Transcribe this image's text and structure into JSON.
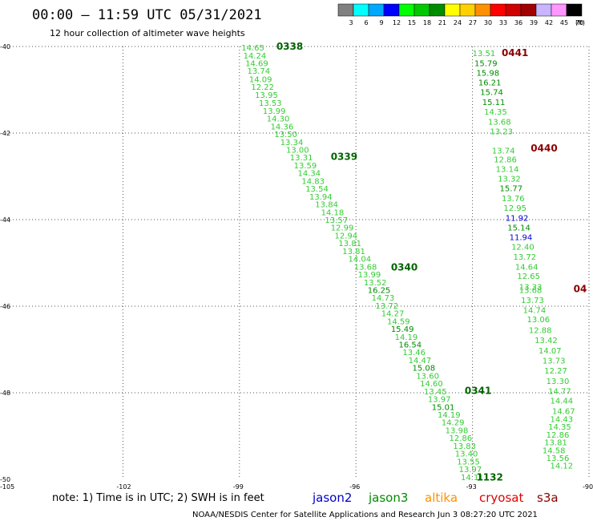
{
  "header": {
    "title": "00:00 – 11:59 UTC 05/31/2021",
    "subtitle": "12 hour collection of altimeter wave heights"
  },
  "legend": {
    "bins": [
      {
        "label": "3",
        "color": "#808080"
      },
      {
        "label": "6",
        "color": "#00ffff"
      },
      {
        "label": "9",
        "color": "#00a8ff"
      },
      {
        "label": "12",
        "color": "#0000ff"
      },
      {
        "label": "15",
        "color": "#00ff00"
      },
      {
        "label": "18",
        "color": "#00c800"
      },
      {
        "label": "21",
        "color": "#008c00"
      },
      {
        "label": "24",
        "color": "#ffff00"
      },
      {
        "label": "27",
        "color": "#ffd000"
      },
      {
        "label": "30",
        "color": "#ff9000"
      },
      {
        "label": "33",
        "color": "#ff0000"
      },
      {
        "label": "36",
        "color": "#d00000"
      },
      {
        "label": "39",
        "color": "#a00000"
      },
      {
        "label": "42",
        "color": "#c8b4ff"
      },
      {
        "label": "45",
        "color": "#ff96ff"
      },
      {
        "label": "70",
        "color": "#000000"
      }
    ],
    "unit": "(ft)"
  },
  "footer": {
    "note": "note: 1) Time is in UTC; 2) SWH is in feet",
    "satellites": [
      {
        "name": "jason2",
        "color": "#0000cc"
      },
      {
        "name": "jason3",
        "color": "#008c00"
      },
      {
        "name": "altika",
        "color": "#ff9000"
      },
      {
        "name": "cryosat",
        "color": "#e00000"
      },
      {
        "name": "s3a",
        "color": "#8b0000"
      }
    ],
    "credit": "NOAA/NESDIS Center for Satellite Applications and Research    Jun  3 08:27:20 UTC 2021"
  },
  "chart_data": {
    "type": "scatter",
    "xlim": [
      -105,
      -90
    ],
    "ylim": [
      -50,
      -40
    ],
    "x_ticks": [
      -105,
      -102,
      -99,
      -96,
      -93,
      -90
    ],
    "y_ticks": [
      -40,
      -42,
      -44,
      -46,
      -48,
      -50
    ],
    "grid": true,
    "tracks": [
      {
        "color": "#00c800",
        "points": [
          {
            "lon": -98.95,
            "lat": -40.02,
            "v": "14.65"
          },
          {
            "lon": -98.9,
            "lat": -40.2,
            "v": "14.24"
          },
          {
            "lon": -98.85,
            "lat": -40.38,
            "v": "14.69"
          },
          {
            "lon": -98.8,
            "lat": -40.56,
            "v": "13.74"
          },
          {
            "lon": -98.75,
            "lat": -40.75,
            "v": "14.09"
          },
          {
            "lon": -98.7,
            "lat": -40.93,
            "v": "12.22"
          },
          {
            "lon": -98.6,
            "lat": -41.11,
            "v": "13.95"
          },
          {
            "lon": -98.5,
            "lat": -41.3,
            "v": "13.53"
          },
          {
            "lon": -98.4,
            "lat": -41.48,
            "v": "13.99"
          },
          {
            "lon": -98.3,
            "lat": -41.66,
            "v": "14.30"
          },
          {
            "lon": -98.2,
            "lat": -41.84,
            "v": "14.36"
          },
          {
            "lon": -98.1,
            "lat": -42.02,
            "v": "13.50"
          },
          {
            "lon": -97.95,
            "lat": -42.2,
            "v": "13.34"
          },
          {
            "lon": -97.8,
            "lat": -42.38,
            "v": "13.00"
          },
          {
            "lon": -97.7,
            "lat": -42.56,
            "v": "13.31"
          },
          {
            "lon": -97.6,
            "lat": -42.74,
            "v": "13.59"
          },
          {
            "lon": -97.5,
            "lat": -42.92,
            "v": "14.34"
          },
          {
            "lon": -97.4,
            "lat": -43.1,
            "v": "14.83"
          },
          {
            "lon": -97.3,
            "lat": -43.28,
            "v": "13.54"
          },
          {
            "lon": -97.2,
            "lat": -43.46,
            "v": "13.94"
          },
          {
            "lon": -97.05,
            "lat": -43.64,
            "v": "13.84"
          },
          {
            "lon": -96.9,
            "lat": -43.82,
            "v": "14.18"
          },
          {
            "lon": -96.8,
            "lat": -44.0,
            "v": "13.57"
          },
          {
            "lon": -96.65,
            "lat": -44.18,
            "v": "12.99"
          },
          {
            "lon": -96.55,
            "lat": -44.36,
            "v": "12.94"
          },
          {
            "lon": -96.45,
            "lat": -44.54,
            "v": "13.81"
          },
          {
            "lon": -96.35,
            "lat": -44.72,
            "v": "13.81"
          },
          {
            "lon": -96.2,
            "lat": -44.9,
            "v": "14.04"
          },
          {
            "lon": -96.05,
            "lat": -45.08,
            "v": "13.68"
          },
          {
            "lon": -95.95,
            "lat": -45.26,
            "v": "13.99"
          },
          {
            "lon": -95.8,
            "lat": -45.44,
            "v": "13.52"
          },
          {
            "lon": -95.7,
            "lat": -45.62,
            "v": "16.25"
          },
          {
            "lon": -95.6,
            "lat": -45.8,
            "v": "14.73"
          },
          {
            "lon": -95.5,
            "lat": -45.98,
            "v": "13.72"
          },
          {
            "lon": -95.35,
            "lat": -46.16,
            "v": "14.27"
          },
          {
            "lon": -95.2,
            "lat": -46.34,
            "v": "14.59"
          },
          {
            "lon": -95.1,
            "lat": -46.52,
            "v": "15.49"
          },
          {
            "lon": -95.0,
            "lat": -46.7,
            "v": "14.19"
          },
          {
            "lon": -94.9,
            "lat": -46.88,
            "v": "16.54"
          },
          {
            "lon": -94.8,
            "lat": -47.06,
            "v": "13.46"
          },
          {
            "lon": -94.65,
            "lat": -47.24,
            "v": "14.47"
          },
          {
            "lon": -94.55,
            "lat": -47.42,
            "v": "15.08"
          },
          {
            "lon": -94.45,
            "lat": -47.6,
            "v": "13.60"
          },
          {
            "lon": -94.35,
            "lat": -47.78,
            "v": "14.60"
          },
          {
            "lon": -94.25,
            "lat": -47.96,
            "v": "13.45"
          },
          {
            "lon": -94.15,
            "lat": -48.14,
            "v": "13.97"
          },
          {
            "lon": -94.05,
            "lat": -48.32,
            "v": "15.01"
          },
          {
            "lon": -93.9,
            "lat": -48.5,
            "v": "14.19"
          },
          {
            "lon": -93.8,
            "lat": -48.68,
            "v": "14.29"
          },
          {
            "lon": -93.7,
            "lat": -48.86,
            "v": "13.98"
          },
          {
            "lon": -93.6,
            "lat": -49.04,
            "v": "12.86"
          },
          {
            "lon": -93.5,
            "lat": -49.22,
            "v": "13.83"
          },
          {
            "lon": -93.45,
            "lat": -49.4,
            "v": "13.40"
          },
          {
            "lon": -93.4,
            "lat": -49.58,
            "v": "13.55"
          },
          {
            "lon": -93.35,
            "lat": -49.76,
            "v": "13.97"
          },
          {
            "lon": -93.3,
            "lat": -49.94,
            "v": "14.11"
          }
        ],
        "time_labels": [
          {
            "lon": -98.05,
            "lat": -40.0,
            "t": "0338"
          },
          {
            "lon": -96.65,
            "lat": -42.55,
            "t": "0339"
          },
          {
            "lon": -95.1,
            "lat": -45.1,
            "t": "0340"
          },
          {
            "lon": -93.2,
            "lat": -47.95,
            "t": "0341"
          },
          {
            "lon": -92.9,
            "lat": -49.95,
            "t": "1132"
          }
        ]
      },
      {
        "color": "#00c800",
        "points": [
          {
            "lon": -93.0,
            "lat": -40.15,
            "v": "13.51"
          },
          {
            "lon": -92.95,
            "lat": -40.38,
            "v": "15.79"
          },
          {
            "lon": -92.9,
            "lat": -40.6,
            "v": "15.98"
          },
          {
            "lon": -92.85,
            "lat": -40.82,
            "v": "16.21"
          },
          {
            "lon": -92.8,
            "lat": -41.05,
            "v": "15.74"
          },
          {
            "lon": -92.75,
            "lat": -41.28,
            "v": "15.11"
          },
          {
            "lon": -92.7,
            "lat": -41.5,
            "v": "14.35"
          },
          {
            "lon": -92.6,
            "lat": -41.73,
            "v": "13.68"
          },
          {
            "lon": -92.55,
            "lat": -41.95,
            "v": "13.23"
          },
          {
            "lon": -92.5,
            "lat": -42.4,
            "v": "13.74"
          },
          {
            "lon": -92.45,
            "lat": -42.6,
            "v": "12.86"
          },
          {
            "lon": -92.4,
            "lat": -42.82,
            "v": "13.14"
          },
          {
            "lon": -92.35,
            "lat": -43.05,
            "v": "13.32"
          },
          {
            "lon": -92.3,
            "lat": -43.27,
            "v": "15.77"
          },
          {
            "lon": -92.25,
            "lat": -43.5,
            "v": "13.76"
          },
          {
            "lon": -92.2,
            "lat": -43.72,
            "v": "12.95"
          },
          {
            "lon": -92.15,
            "lat": -43.95,
            "v": "11.92"
          },
          {
            "lon": -92.1,
            "lat": -44.18,
            "v": "15.14"
          },
          {
            "lon": -92.05,
            "lat": -44.4,
            "v": "11.94"
          },
          {
            "lon": -92.0,
            "lat": -44.62,
            "v": "12.40"
          },
          {
            "lon": -91.95,
            "lat": -44.85,
            "v": "13.72"
          },
          {
            "lon": -91.9,
            "lat": -45.08,
            "v": "14.64"
          },
          {
            "lon": -91.85,
            "lat": -45.3,
            "v": "12.65"
          },
          {
            "lon": -91.8,
            "lat": -45.55,
            "v": "13.33"
          },
          {
            "lon": -91.8,
            "lat": -45.62,
            "v": "13.68"
          },
          {
            "lon": -91.75,
            "lat": -45.85,
            "v": "13.73"
          },
          {
            "lon": -91.7,
            "lat": -46.08,
            "v": "14.74"
          },
          {
            "lon": -91.6,
            "lat": -46.3,
            "v": "13.06"
          },
          {
            "lon": -91.55,
            "lat": -46.55,
            "v": "12.88"
          },
          {
            "lon": -91.4,
            "lat": -46.78,
            "v": "13.42"
          },
          {
            "lon": -91.3,
            "lat": -47.02,
            "v": "14.07"
          },
          {
            "lon": -91.2,
            "lat": -47.25,
            "v": "13.73"
          },
          {
            "lon": -91.15,
            "lat": -47.48,
            "v": "12.27"
          },
          {
            "lon": -91.1,
            "lat": -47.72,
            "v": "13.30"
          },
          {
            "lon": -91.05,
            "lat": -47.95,
            "v": "14.77"
          },
          {
            "lon": -91.0,
            "lat": -48.18,
            "v": "14.44"
          },
          {
            "lon": -90.95,
            "lat": -48.42,
            "v": "14.67"
          },
          {
            "lon": -91.0,
            "lat": -48.6,
            "v": "14.43"
          },
          {
            "lon": -91.05,
            "lat": -48.78,
            "v": "14.35"
          },
          {
            "lon": -91.1,
            "lat": -48.96,
            "v": "12.86"
          },
          {
            "lon": -91.15,
            "lat": -49.14,
            "v": "13.81"
          },
          {
            "lon": -91.2,
            "lat": -49.32,
            "v": "14.58"
          },
          {
            "lon": -91.1,
            "lat": -49.5,
            "v": "13.56"
          },
          {
            "lon": -91.0,
            "lat": -49.68,
            "v": "14.12"
          }
        ],
        "time_labels": [
          {
            "lon": -92.25,
            "lat": -40.15,
            "t": "0441"
          },
          {
            "lon": -91.5,
            "lat": -42.35,
            "t": "0440"
          },
          {
            "lon": -90.4,
            "lat": -45.6,
            "t": "04"
          }
        ]
      }
    ]
  }
}
